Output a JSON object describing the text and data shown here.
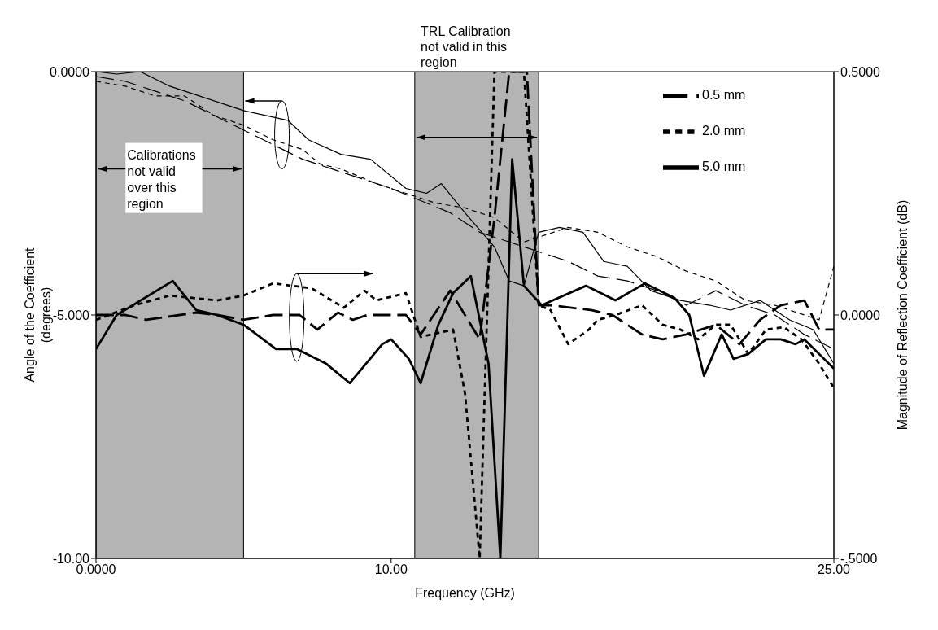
{
  "chart_data": {
    "type": "line",
    "xlabel": "Frequency (GHz)",
    "ylabel": "Angle of the Coefficient (degrees)",
    "y2label": "Magnitude of Reflection Coefficient (dB)",
    "xlim": [
      0,
      25
    ],
    "xticks": [
      {
        "value": 0,
        "label": "0.0000"
      },
      {
        "value": 10,
        "label": "10.00"
      },
      {
        "value": 25,
        "label": "25.00"
      }
    ],
    "ylim": [
      -10,
      0
    ],
    "yticks": [
      {
        "value": 0,
        "label": "0.0000"
      },
      {
        "value": -5,
        "label": "-5.000"
      },
      {
        "value": -10,
        "label": "-10.00"
      }
    ],
    "y2lim": [
      -0.5,
      0.5
    ],
    "y2ticks": [
      {
        "value": 0.5,
        "label": "0.5000"
      },
      {
        "value": 0,
        "label": "0.0000"
      },
      {
        "value": -0.5,
        "label": "-.5000"
      }
    ],
    "legend": "top right",
    "marker": "none",
    "bands": [
      {
        "axis": "x",
        "from": 0,
        "to": 5.0,
        "label": "Calibrations not valid over this region",
        "color": "#b4b4b4"
      },
      {
        "axis": "x",
        "from": 10.8,
        "to": 15.0,
        "color": "#b4b4b4"
      }
    ],
    "annotations": [
      "TRL Calibration not valid in this region"
    ],
    "series": [
      {
        "color": "#000000",
        "line_style": "dashed",
        "x": [
          0,
          1,
          2,
          3,
          4,
          5,
          6,
          7,
          8,
          9,
          10,
          10.8,
          12,
          13,
          14,
          15,
          16,
          17,
          18,
          19,
          20,
          21,
          22,
          23,
          24,
          25
        ],
        "values": [
          -0.1,
          -0.2,
          -0.4,
          -0.6,
          -0.9,
          -1.2,
          -1.5,
          -1.8,
          -2.0,
          -2.2,
          -2.4,
          -2.6,
          -2.9,
          -3.3,
          -3.5,
          -3.7,
          -3.9,
          -4.2,
          -4.3,
          -4.5,
          -4.8,
          -4.5,
          -4.8,
          -5.0,
          -5.4,
          -5.7
        ]
      },
      {
        "color": "#000000",
        "line_style": "dotted",
        "x": [
          0,
          1,
          2,
          3,
          4,
          5,
          6,
          7,
          7.6,
          8.3,
          9.5,
          10.5,
          11.5,
          12.5,
          13.5,
          14.5,
          15,
          16,
          17,
          18,
          19,
          20,
          21,
          22,
          23,
          24,
          24.5,
          25
        ],
        "values": [
          -0.2,
          -0.3,
          -0.5,
          -0.5,
          -0.9,
          -1.1,
          -1.4,
          -1.6,
          -1.9,
          -2.0,
          -2.3,
          -2.5,
          -2.7,
          -2.8,
          -3.0,
          -3.5,
          -3.4,
          -3.2,
          -3.3,
          -3.6,
          -3.8,
          -4.1,
          -4.3,
          -4.7,
          -4.8,
          -5.0,
          -5.1,
          -4.0
        ]
      },
      {
        "color": "#000000",
        "line_style": "solid",
        "x": [
          0,
          0.7,
          1.5,
          2.5,
          3.5,
          4.5,
          5,
          6.5,
          7.2,
          8.3,
          9.3,
          10.5,
          11.2,
          11.7,
          12.5,
          13.5,
          14,
          14.5,
          15,
          15.7,
          16.5,
          17.2,
          18,
          18.8,
          19.8,
          20.8,
          21.5,
          22.5,
          23.5,
          24.3,
          25
        ],
        "values": [
          0,
          -0.05,
          0,
          -0.3,
          -0.5,
          -0.7,
          -0.8,
          -1.0,
          -1.4,
          -1.7,
          -1.8,
          -2.4,
          -2.5,
          -2.3,
          -2.9,
          -3.6,
          -4.3,
          -4.4,
          -3.3,
          -3.2,
          -3.3,
          -3.9,
          -4.0,
          -4.5,
          -4.7,
          -4.8,
          -4.9,
          -4.7,
          -5.1,
          -5.3,
          -6.0
        ]
      },
      {
        "name": "0.5 mm",
        "color": "#000000",
        "line_style": "dashed",
        "axis": "y2",
        "x": [
          0,
          1,
          1.7,
          3.4,
          4.1,
          5,
          6,
          6.9,
          7.5,
          8.2,
          8.7,
          9.2,
          10.5,
          11,
          12,
          13,
          13.5,
          14,
          14.6,
          15,
          15.4,
          16.8,
          17.5,
          18.5,
          19.2,
          20,
          21,
          21.8,
          22.5,
          23.2,
          24,
          24.5,
          25
        ],
        "values": [
          0,
          0,
          -0.01,
          0.005,
          0,
          -0.01,
          0,
          0,
          -0.03,
          0.005,
          -0.01,
          0,
          0,
          -0.04,
          0.05,
          -0.05,
          0.2,
          0.5,
          0.5,
          0.02,
          0.02,
          0.01,
          0,
          -0.04,
          -0.05,
          -0.04,
          -0.02,
          -0.06,
          -0.01,
          0.02,
          0.03,
          -0.03,
          -0.03
        ]
      },
      {
        "name": "2.0 mm",
        "color": "#000000",
        "line_style": "dotted",
        "axis": "y2",
        "x": [
          0,
          1.3,
          2.5,
          4.1,
          5,
          6,
          7.3,
          8.4,
          9.1,
          9.5,
          10.5,
          11,
          12.1,
          12.5,
          13,
          13.5,
          14.5,
          15,
          15.4,
          16,
          16.7,
          17,
          17.6,
          18.5,
          19.2,
          19.8,
          20.4,
          21,
          21.5,
          22.1,
          22.7,
          23.3,
          23.9,
          24.5,
          25
        ],
        "values": [
          -0.01,
          0.02,
          0.04,
          0.03,
          0.04,
          0.065,
          0.055,
          0.015,
          0.05,
          0.03,
          0.045,
          -0.045,
          -0.03,
          -0.16,
          -0.5,
          0.5,
          0.5,
          0.02,
          0.01,
          -0.06,
          -0.03,
          -0.01,
          0,
          0.02,
          -0.02,
          -0.03,
          -0.05,
          -0.02,
          -0.02,
          -0.08,
          -0.03,
          -0.025,
          -0.05,
          -0.1,
          -0.15
        ]
      },
      {
        "name": "5.0 mm",
        "color": "#000000",
        "line_style": "solid",
        "axis": "y2",
        "x": [
          0,
          0.7,
          2.6,
          3.4,
          4.1,
          5,
          6.1,
          6.8,
          7.8,
          8.6,
          9.7,
          10,
          10.6,
          11,
          11.6,
          12.1,
          12.7,
          13.3,
          13.7,
          14.1,
          14.5,
          15.1,
          16.6,
          17.6,
          18.6,
          19.6,
          20.1,
          20.6,
          21.2,
          21.6,
          22.1,
          22.7,
          23.2,
          23.7,
          24,
          25
        ],
        "values": [
          -0.07,
          0,
          0.07,
          0.01,
          0,
          -0.02,
          -0.07,
          -0.07,
          -0.1,
          -0.14,
          -0.06,
          -0.05,
          -0.09,
          -0.14,
          -0.02,
          0.045,
          0.08,
          -0.1,
          -0.5,
          0.32,
          0.06,
          0.02,
          0.06,
          0.03,
          0.065,
          0.035,
          0,
          -0.125,
          -0.04,
          -0.09,
          -0.08,
          -0.05,
          -0.05,
          -0.06,
          -0.05,
          -0.11
        ]
      }
    ]
  }
}
